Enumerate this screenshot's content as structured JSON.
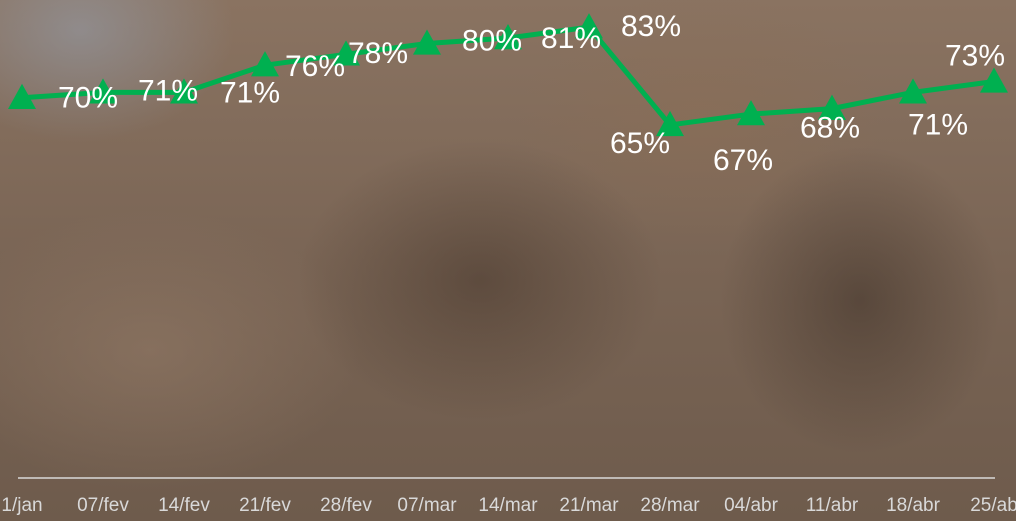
{
  "chart_data": {
    "type": "line",
    "categories": [
      "1/jan",
      "07/fev",
      "14/fev",
      "21/fev",
      "28/fev",
      "07/mar",
      "14/mar",
      "21/mar",
      "28/mar",
      "04/abr",
      "11/abr",
      "18/abr",
      "25/ab"
    ],
    "values": [
      70,
      71,
      71,
      76,
      78,
      80,
      81,
      83,
      65,
      67,
      68,
      71,
      73
    ],
    "value_labels": [
      "70%",
      "71%",
      "71%",
      "76%",
      "78%",
      "80%",
      "81%",
      "83%",
      "65%",
      "67%",
      "68%",
      "71%",
      "73%"
    ],
    "color": "#00b050",
    "ylim": [
      0,
      88
    ]
  }
}
